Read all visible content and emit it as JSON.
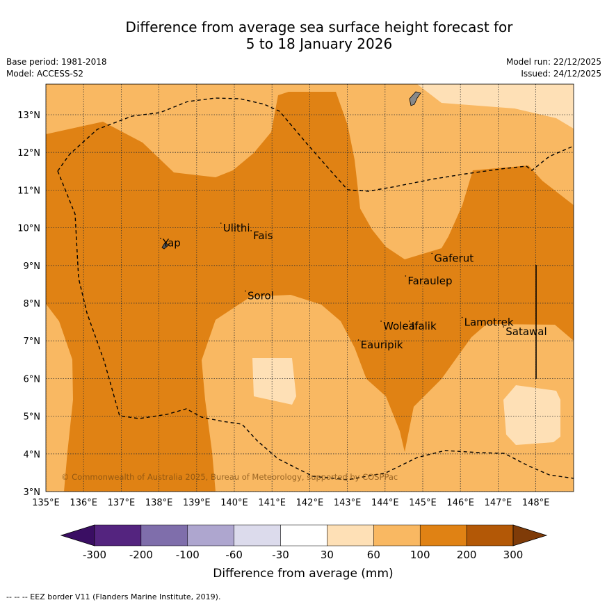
{
  "title": {
    "line1": "Difference from average sea surface height forecast for",
    "line2": "5 to 18 January 2026"
  },
  "meta": {
    "base_period": "Base period: 1981-2018",
    "model": "Model: ACCESS-S2",
    "model_run": "Model run: 22/12/2025",
    "issued": "Issued: 24/12/2025"
  },
  "axes": {
    "lon_labels": [
      "135°E",
      "136°E",
      "137°E",
      "138°E",
      "139°E",
      "140°E",
      "141°E",
      "142°E",
      "143°E",
      "144°E",
      "145°E",
      "146°E",
      "147°E",
      "148°E"
    ],
    "lat_labels": [
      "3°N",
      "4°N",
      "5°N",
      "6°N",
      "7°N",
      "8°N",
      "9°N",
      "10°N",
      "11°N",
      "12°N",
      "13°N"
    ]
  },
  "places": [
    {
      "name": "Yap",
      "lon": 138.1,
      "lat": 9.5
    },
    {
      "name": "Ulithi",
      "lon": 139.7,
      "lat": 9.9
    },
    {
      "name": "Fais",
      "lon": 140.5,
      "lat": 9.7
    },
    {
      "name": "Gaferut",
      "lon": 145.3,
      "lat": 9.1
    },
    {
      "name": "Faraulep",
      "lon": 144.6,
      "lat": 8.5
    },
    {
      "name": "Sorol",
      "lon": 140.35,
      "lat": 8.1
    },
    {
      "name": "Lamotrek",
      "lon": 146.1,
      "lat": 7.4
    },
    {
      "name": "Woleai",
      "lon": 143.95,
      "lat": 7.3
    },
    {
      "name": "Ifalik",
      "lon": 144.7,
      "lat": 7.3
    },
    {
      "name": "Satawal",
      "lon": 147.2,
      "lat": 7.15
    },
    {
      "name": "Eauripik",
      "lon": 143.35,
      "lat": 6.8
    }
  ],
  "copyright": "© Commonwealth of Australia 2025, Bureau of Meteorology, supported by COSPPac",
  "colorbar": {
    "ticks": [
      "-300",
      "-200",
      "-100",
      "-60",
      "-30",
      "30",
      "60",
      "100",
      "200",
      "300"
    ],
    "colors": [
      "#3a0e63",
      "#54247f",
      "#7f6eab",
      "#aea6cf",
      "#dcdbec",
      "#ffffff",
      "#fee0b6",
      "#f9b862",
      "#e08214",
      "#b35806",
      "#7f3b08"
    ],
    "label": "Difference from average (mm)"
  },
  "footer": "--  --  -- EEZ border V11 (Flanders Marine Institute, 2019)."
}
